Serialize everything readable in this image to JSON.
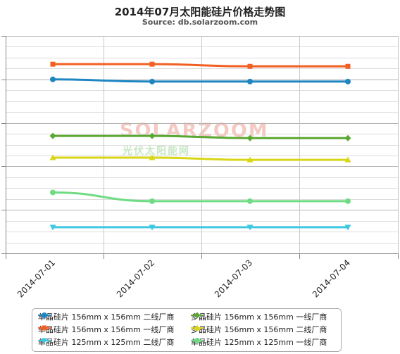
{
  "chart_data": {
    "type": "line",
    "title": "2014年07月太阳能硅片价格走势图",
    "subtitle": "Source: db.solarzoom.com",
    "categories": [
      "2014-07-01",
      "2014-07-02",
      "2014-07-03",
      "2014-07-04"
    ],
    "ylim": [
      0,
      10
    ],
    "grid": true,
    "legend_position": "bottom",
    "series": [
      {
        "name": "单晶硅片 156mm x 156mm 二线厂商",
        "values": [
          8.0,
          7.9,
          7.9,
          7.9
        ],
        "color": "#1f86c2",
        "marker": "circle"
      },
      {
        "name": "多晶硅片 156mm x 156mm 一线厂商",
        "values": [
          5.4,
          5.4,
          5.3,
          5.3
        ],
        "color": "#5aa832",
        "marker": "diamond"
      },
      {
        "name": "单晶硅片 156mm x 156mm 一线厂商",
        "values": [
          8.7,
          8.7,
          8.6,
          8.6
        ],
        "color": "#f25f22",
        "marker": "square"
      },
      {
        "name": "多晶硅片 156mm x 156mm 二线厂商",
        "values": [
          4.4,
          4.4,
          4.3,
          4.3
        ],
        "color": "#d9d617",
        "marker": "triangle"
      },
      {
        "name": "单晶硅片 125mm x 125mm 二线厂商",
        "values": [
          1.2,
          1.2,
          1.2,
          1.2
        ],
        "color": "#3cc8e0",
        "marker": "triangle-down"
      },
      {
        "name": "单晶硅片 125mm x 125mm 一线厂商",
        "values": [
          2.8,
          2.4,
          2.4,
          2.4
        ],
        "color": "#6fdc84",
        "marker": "circle"
      }
    ]
  },
  "watermark": {
    "brand": "SOLARZOOM",
    "tagline": "光伏太阳能网"
  }
}
